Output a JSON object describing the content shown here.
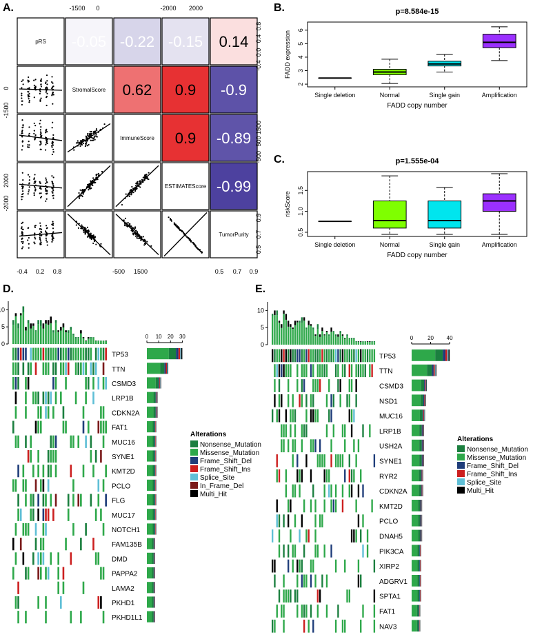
{
  "panel_labels": {
    "A": "A.",
    "B": "B.",
    "C": "C.",
    "D": "D.",
    "E": "E."
  },
  "colors": {
    "nonsense": "#1b7f3f",
    "missense": "#2ea84a",
    "frame_shift_del": "#1f3d7a",
    "frame_shift_ins": "#cc1f1f",
    "splice_site": "#5fbfd6",
    "in_frame_del": "#7a1a1a",
    "multi_hit": "#000000",
    "corr_red": "#e41a1c",
    "corr_blue": "#4b3f9e"
  },
  "chart_data": [
    {
      "type": "table",
      "panel": "A",
      "variables": [
        "pRS",
        "StromalScore",
        "ImmuneScore",
        "ESTIMATEScore",
        "TumorPurity"
      ],
      "correlations": [
        {
          "row": "pRS",
          "col": "StromalScore",
          "r": "-0.05",
          "v": -0.05
        },
        {
          "row": "pRS",
          "col": "ImmuneScore",
          "r": "-0.22",
          "v": -0.22
        },
        {
          "row": "pRS",
          "col": "ESTIMATEScore",
          "r": "-0.15",
          "v": -0.15
        },
        {
          "row": "pRS",
          "col": "TumorPurity",
          "r": "0.14",
          "v": 0.14
        },
        {
          "row": "StromalScore",
          "col": "ImmuneScore",
          "r": "0.62",
          "v": 0.62
        },
        {
          "row": "StromalScore",
          "col": "ESTIMATEScore",
          "r": "0.9",
          "v": 0.9
        },
        {
          "row": "StromalScore",
          "col": "TumorPurity",
          "r": "-0.9",
          "v": -0.9
        },
        {
          "row": "ImmuneScore",
          "col": "ESTIMATEScore",
          "r": "0.9",
          "v": 0.9
        },
        {
          "row": "ImmuneScore",
          "col": "TumorPurity",
          "r": "-0.89",
          "v": -0.89
        },
        {
          "row": "ESTIMATEScore",
          "col": "TumorPurity",
          "r": "-0.99",
          "v": -0.99
        }
      ],
      "axis_ticks": {
        "top": [
          "-1500",
          "0",
          "-2000",
          "2000"
        ],
        "right": [
          "0.8",
          "0.4",
          "0.0",
          "-0.4",
          "1500",
          "500",
          "-500",
          "0.9",
          "0.7",
          "0.5"
        ],
        "left": [
          "0",
          "-1500",
          "2000",
          "-2000"
        ],
        "bottom": [
          "-0.4",
          "0.2",
          "0.8",
          "-500",
          "1500",
          "0.5",
          "0.7",
          "0.9"
        ]
      }
    },
    {
      "type": "box",
      "panel": "B",
      "title": "p=8.584e-15",
      "xlabel": "FADD copy number",
      "ylabel": "FADD expression",
      "ylim": [
        1.8,
        6.6
      ],
      "yticks": [
        2,
        3,
        4,
        5,
        6
      ],
      "categories": [
        "Single deletion",
        "Normal",
        "Single gain",
        "Amplification"
      ],
      "fills": [
        "#ffffff",
        "#7fff00",
        "#00e5ee",
        "#9b30ff"
      ],
      "boxes": [
        {
          "min": 2.45,
          "q1": 2.45,
          "median": 2.45,
          "q3": 2.45,
          "max": 2.45
        },
        {
          "min": 2.05,
          "q1": 2.7,
          "median": 2.9,
          "q3": 3.1,
          "max": 3.85
        },
        {
          "min": 2.9,
          "q1": 3.35,
          "median": 3.5,
          "q3": 3.7,
          "max": 4.2
        },
        {
          "min": 3.75,
          "q1": 4.7,
          "median": 5.1,
          "q3": 5.7,
          "max": 6.25
        }
      ]
    },
    {
      "type": "box",
      "panel": "C",
      "title": "p=1.555e-04",
      "xlabel": "FADD copy number",
      "ylabel": "riskScore",
      "ylim": [
        0.4,
        1.95
      ],
      "yticks": [
        0.5,
        1.0,
        1.5
      ],
      "categories": [
        "Single deletion",
        "Normal",
        "Single gain",
        "Amplification"
      ],
      "fills": [
        "#ffffff",
        "#7fff00",
        "#00e5ee",
        "#9b30ff"
      ],
      "boxes": [
        {
          "min": 0.76,
          "q1": 0.76,
          "median": 0.76,
          "q3": 0.76,
          "max": 0.76
        },
        {
          "min": 0.45,
          "q1": 0.6,
          "median": 0.78,
          "q3": 1.25,
          "max": 1.85
        },
        {
          "min": 0.45,
          "q1": 0.6,
          "median": 0.78,
          "q3": 1.25,
          "max": 1.57
        },
        {
          "min": 0.45,
          "q1": 1.0,
          "median": 1.25,
          "q3": 1.42,
          "max": 1.9
        }
      ]
    },
    {
      "type": "heatmap",
      "panel": "D",
      "top_yticks": [
        "0",
        "5",
        "10"
      ],
      "count_xticks": [
        "0",
        "10",
        "20",
        "30"
      ],
      "count_max": 35,
      "genes": [
        "TP53",
        "TTN",
        "CSMD3",
        "LRP1B",
        "CDKN2A",
        "FAT1",
        "MUC16",
        "SYNE1",
        "KMT2D",
        "PCLO",
        "FLG",
        "MUC17",
        "NOTCH1",
        "FAM135B",
        "DMD",
        "PAPPA2",
        "LAMA2",
        "PKHD1",
        "PKHD1L1"
      ],
      "gene_counts": [
        30,
        18,
        12,
        9,
        9,
        8,
        8,
        8,
        8,
        8,
        8,
        8,
        8,
        7,
        7,
        7,
        7,
        7,
        7
      ],
      "legend_title": "Alterations",
      "legend": [
        "Nonsense_Mutation",
        "Missense_Mutation",
        "Frame_Shift_Del",
        "Frame_Shift_Ins",
        "Splice_Site",
        "In_Frame_Del",
        "Multi_Hit"
      ]
    },
    {
      "type": "heatmap",
      "panel": "E",
      "top_yticks": [
        "0",
        "5",
        "10"
      ],
      "count_xticks": [
        "0",
        "20",
        "40"
      ],
      "count_max": 45,
      "genes": [
        "TP53",
        "TTN",
        "CSMD3",
        "NSD1",
        "MUC16",
        "LRP1B",
        "USH2A",
        "SYNE1",
        "RYR2",
        "CDKN2A",
        "KMT2D",
        "PCLO",
        "DNAH5",
        "PIK3CA",
        "XIRP2",
        "ADGRV1",
        "SPTA1",
        "FAT1",
        "NAV3"
      ],
      "gene_counts": [
        40,
        26,
        16,
        15,
        14,
        13,
        13,
        13,
        12,
        12,
        11,
        11,
        11,
        10,
        10,
        10,
        10,
        9,
        9
      ],
      "legend_title": "Alterations",
      "legend": [
        "Nonsense_Mutation",
        "Missense_Mutation",
        "Frame_Shift_Del",
        "Frame_Shift_Ins",
        "Splice_Site",
        "Multi_Hit"
      ]
    }
  ]
}
